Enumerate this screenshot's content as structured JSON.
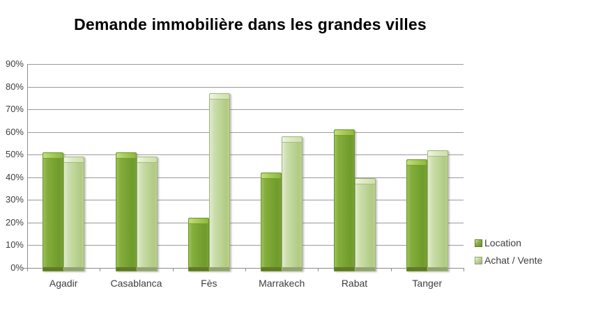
{
  "title": "Demande immobilière dans les grandes villes",
  "legend": {
    "items": [
      {
        "label": "Location"
      },
      {
        "label": "Achat / Vente"
      }
    ]
  },
  "chart_data": {
    "type": "bar",
    "title": "Demande immobilière dans les grandes villes",
    "categories": [
      "Agadir",
      "Casablanca",
      "Fès",
      "Marrakech",
      "Rabat",
      "Tanger"
    ],
    "series": [
      {
        "name": "Location",
        "color": "#7aa534",
        "values": [
          51,
          51,
          22,
          42,
          61,
          48
        ]
      },
      {
        "name": "Achat / Vente",
        "color": "#bdd496",
        "values": [
          49,
          49,
          77,
          58,
          39.5,
          52
        ]
      }
    ],
    "xlabel": "",
    "ylabel": "",
    "ylim": [
      0,
      90
    ],
    "y_tick_step": 10,
    "y_tick_labels": [
      "0%",
      "10%",
      "20%",
      "30%",
      "40%",
      "50%",
      "60%",
      "70%",
      "80%",
      "90%"
    ],
    "grid": true,
    "legend_position": "right"
  }
}
